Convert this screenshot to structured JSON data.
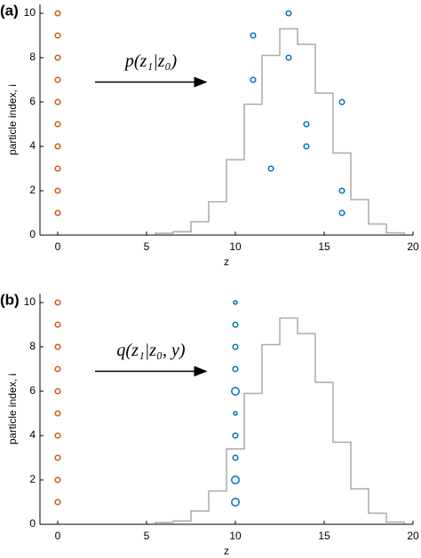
{
  "chart_data": [
    {
      "type": "scatter",
      "panel_label": "(a)",
      "xlabel": "z",
      "ylabel": "particle index, i",
      "annotation": "p(z₁|z₀)",
      "xlim": [
        -1,
        20
      ],
      "xticks": [
        0,
        5,
        10,
        15,
        20
      ],
      "ylim": [
        0,
        10.4
      ],
      "yticks": [
        0,
        2,
        4,
        6,
        8,
        10
      ],
      "series": [
        {
          "type": "step",
          "color": "#aaaaaa",
          "bins": [
            5.5,
            6.5,
            7.5,
            8.5,
            9.5,
            10.5,
            11.5,
            12.5,
            13.5,
            14.5,
            15.5,
            16.5,
            17.5,
            18.5,
            19.5
          ],
          "values": [
            0.08,
            0.15,
            0.6,
            1.5,
            3.4,
            5.9,
            8.1,
            9.3,
            8.6,
            6.4,
            3.7,
            1.6,
            0.5,
            0.1
          ]
        },
        {
          "type": "scatter",
          "color": "#d95319",
          "x": [
            0,
            0,
            0,
            0,
            0,
            0,
            0,
            0,
            0,
            0
          ],
          "values": [
            1,
            2,
            3,
            4,
            5,
            6,
            7,
            8,
            9,
            10
          ]
        },
        {
          "type": "scatter",
          "color": "#0072bd",
          "x": [
            16,
            16,
            12,
            14,
            14,
            16,
            11,
            13,
            11,
            13
          ],
          "values": [
            1,
            2,
            3,
            4,
            5,
            6,
            7,
            8,
            9,
            10
          ]
        }
      ]
    },
    {
      "type": "scatter",
      "panel_label": "(b)",
      "xlabel": "z",
      "ylabel": "particle index, i",
      "annotation": "q(z₁|z₀, y)",
      "xlim": [
        -1,
        20
      ],
      "xticks": [
        0,
        5,
        10,
        15,
        20
      ],
      "ylim": [
        0,
        10.4
      ],
      "yticks": [
        0,
        2,
        4,
        6,
        8,
        10
      ],
      "series": [
        {
          "type": "step",
          "color": "#aaaaaa",
          "bins": [
            5.5,
            6.5,
            7.5,
            8.5,
            9.5,
            10.5,
            11.5,
            12.5,
            13.5,
            14.5,
            15.5,
            16.5,
            17.5,
            18.5,
            19.5
          ],
          "values": [
            0.08,
            0.15,
            0.6,
            1.5,
            3.4,
            5.9,
            8.1,
            9.3,
            8.6,
            6.4,
            3.7,
            1.6,
            0.5,
            0.1
          ]
        },
        {
          "type": "scatter",
          "color": "#d95319",
          "x": [
            0,
            0,
            0,
            0,
            0,
            0,
            0,
            0,
            0,
            0
          ],
          "values": [
            1,
            2,
            3,
            4,
            5,
            6,
            7,
            8,
            9,
            10
          ]
        },
        {
          "type": "scatter",
          "color": "#0072bd",
          "x": [
            10,
            10,
            10,
            10,
            10,
            10,
            10,
            10,
            10,
            10
          ],
          "values": [
            1,
            2,
            3,
            4,
            5,
            6,
            7,
            8,
            9,
            10
          ],
          "sizes": [
            1.5,
            1.5,
            1,
            1,
            0.7,
            1.5,
            1,
            1,
            1,
            0.7
          ]
        }
      ]
    }
  ]
}
